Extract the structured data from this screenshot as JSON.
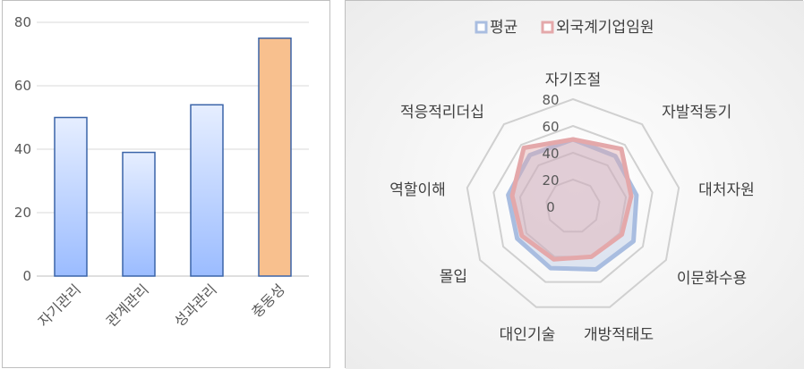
{
  "chart_data": [
    {
      "type": "bar",
      "categories": [
        "자기관리",
        "관계관리",
        "성과관리",
        "충동성"
      ],
      "values": [
        50,
        39,
        54,
        75
      ],
      "ylim": [
        0,
        80
      ],
      "yticks": [
        0,
        20,
        40,
        60,
        80
      ],
      "grid": true,
      "colors": {
        "bar_fill_top": "#e6eeff",
        "bar_fill_bottom": "#9bbcff",
        "bar_stroke": "#3a64a8",
        "highlight_fill": "#f8c08e",
        "highlight_stroke": "#3a64a8",
        "highlight_index": 3
      }
    },
    {
      "type": "radar",
      "categories": [
        "자기조절",
        "자발적동기",
        "대처자원",
        "이문화수용",
        "개방적태도",
        "대인기술",
        "몰입",
        "역할이해",
        "적응적리더십"
      ],
      "rlim": [
        0,
        80
      ],
      "rticks": [
        0,
        20,
        40,
        60,
        80
      ],
      "legend_position": "top",
      "series": [
        {
          "name": "평균",
          "values": [
            50,
            49,
            48,
            52,
            50,
            49,
            48,
            49,
            50
          ],
          "color": "#a9bde0"
        },
        {
          "name": "외국계기업임원",
          "values": [
            50,
            56,
            44,
            42,
            40,
            42,
            44,
            46,
            57
          ],
          "color": "#e4a8aa"
        }
      ]
    }
  ]
}
